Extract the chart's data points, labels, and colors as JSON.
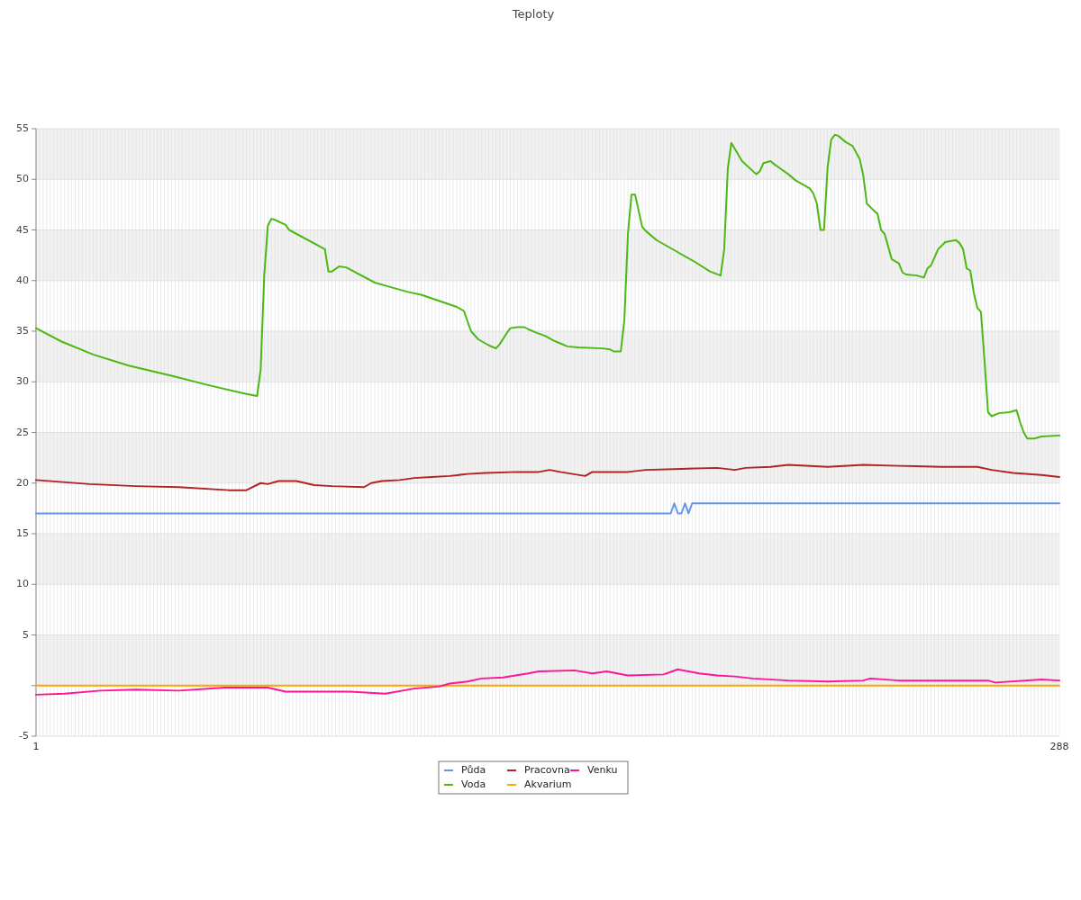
{
  "chart_data": {
    "type": "line",
    "title": "Teploty",
    "legend": "bottom",
    "grid": true,
    "marker": "none",
    "line_style": "solid",
    "xlim": [
      1,
      288
    ],
    "ylim": [
      -5,
      55
    ],
    "yticks": [
      -5,
      {
        "value": 0,
        "label": null
      },
      5,
      10,
      15,
      20,
      25,
      30,
      35,
      40,
      45,
      50,
      55
    ],
    "xticks": [
      1,
      {
        "value": 2,
        "label": null
      },
      {
        "value": 3,
        "label": null
      },
      {
        "value": 4,
        "label": null
      },
      {
        "value": 5,
        "label": null
      },
      {
        "value": 6,
        "label": null
      },
      {
        "value": 7,
        "label": null
      },
      {
        "value": 8,
        "label": null
      },
      {
        "value": 9,
        "label": null
      },
      {
        "value": 10,
        "label": null
      },
      {
        "value": 11,
        "label": null
      },
      {
        "value": 12,
        "label": null
      },
      {
        "value": 13,
        "label": null
      },
      {
        "value": 14,
        "label": null
      },
      {
        "value": 15,
        "label": null
      },
      {
        "value": 16,
        "label": null
      },
      {
        "value": 17,
        "label": null
      },
      {
        "value": 18,
        "label": null
      },
      {
        "value": 19,
        "label": null
      },
      {
        "value": 20,
        "label": null
      },
      {
        "value": 21,
        "label": null
      },
      {
        "value": 22,
        "label": null
      },
      {
        "value": 23,
        "label": null
      },
      {
        "value": 24,
        "label": null
      },
      {
        "value": 25,
        "label": null
      },
      {
        "value": 26,
        "label": null
      },
      {
        "value": 27,
        "label": null
      },
      {
        "value": 28,
        "label": null
      },
      {
        "value": 29,
        "label": null
      },
      {
        "value": 30,
        "label": null
      },
      {
        "value": 31,
        "label": null
      },
      {
        "value": 32,
        "label": null
      },
      {
        "value": 33,
        "label": null
      },
      {
        "value": 34,
        "label": null
      },
      {
        "value": 35,
        "label": null
      },
      {
        "value": 36,
        "label": null
      },
      {
        "value": 37,
        "label": null
      },
      {
        "value": 38,
        "label": null
      },
      {
        "value": 39,
        "label": null
      },
      {
        "value": 40,
        "label": null
      },
      {
        "value": 41,
        "label": null
      },
      {
        "value": 42,
        "label": null
      },
      {
        "value": 43,
        "label": null
      },
      {
        "value": 44,
        "label": null
      },
      {
        "value": 45,
        "label": null
      },
      {
        "value": 46,
        "label": null
      },
      {
        "value": 47,
        "label": null
      },
      {
        "value": 48,
        "label": null
      },
      {
        "value": 49,
        "label": null
      },
      {
        "value": 50,
        "label": null
      },
      {
        "value": 51,
        "label": null
      },
      {
        "value": 52,
        "label": null
      },
      {
        "value": 53,
        "label": null
      },
      {
        "value": 54,
        "label": null
      },
      {
        "value": 55,
        "label": null
      },
      {
        "value": 56,
        "label": null
      },
      {
        "value": 57,
        "label": null
      },
      {
        "value": 58,
        "label": null
      },
      {
        "value": 59,
        "label": null
      },
      {
        "value": 60,
        "label": null
      },
      {
        "value": 61,
        "label": null
      },
      {
        "value": 62,
        "label": null
      },
      {
        "value": 63,
        "label": null
      },
      {
        "value": 64,
        "label": null
      },
      {
        "value": 65,
        "label": null
      },
      {
        "value": 66,
        "label": null
      },
      {
        "value": 67,
        "label": null
      },
      {
        "value": 68,
        "label": null
      },
      {
        "value": 69,
        "label": null
      },
      {
        "value": 70,
        "label": null
      },
      {
        "value": 71,
        "label": null
      },
      {
        "value": 72,
        "label": null
      },
      {
        "value": 73,
        "label": null
      },
      {
        "value": 74,
        "label": null
      },
      {
        "value": 75,
        "label": null
      },
      {
        "value": 76,
        "label": null
      },
      {
        "value": 77,
        "label": null
      },
      {
        "value": 78,
        "label": null
      },
      {
        "value": 79,
        "label": null
      },
      {
        "value": 80,
        "label": null
      },
      {
        "value": 81,
        "label": null
      },
      {
        "value": 82,
        "label": null
      },
      {
        "value": 83,
        "label": null
      },
      {
        "value": 84,
        "label": null
      },
      {
        "value": 85,
        "label": null
      },
      {
        "value": 86,
        "label": null
      },
      {
        "value": 87,
        "label": null
      },
      {
        "value": 88,
        "label": null
      },
      {
        "value": 89,
        "label": null
      },
      {
        "value": 90,
        "label": null
      },
      {
        "value": 91,
        "label": null
      },
      {
        "value": 92,
        "label": null
      },
      {
        "value": 93,
        "label": null
      },
      {
        "value": 94,
        "label": null
      },
      {
        "value": 95,
        "label": null
      },
      {
        "value": 96,
        "label": null
      },
      {
        "value": 97,
        "label": null
      },
      {
        "value": 98,
        "label": null
      },
      {
        "value": 99,
        "label": null
      },
      {
        "value": 100,
        "label": null
      },
      {
        "value": 101,
        "label": null
      },
      {
        "value": 102,
        "label": null
      },
      {
        "value": 103,
        "label": null
      },
      {
        "value": 104,
        "label": null
      },
      {
        "value": 105,
        "label": null
      },
      {
        "value": 106,
        "label": null
      },
      {
        "value": 107,
        "label": null
      },
      {
        "value": 108,
        "label": null
      },
      {
        "value": 109,
        "label": null
      },
      {
        "value": 110,
        "label": null
      },
      {
        "value": 111,
        "label": null
      },
      {
        "value": 112,
        "label": null
      },
      {
        "value": 113,
        "label": null
      },
      {
        "value": 114,
        "label": null
      },
      {
        "value": 115,
        "label": null
      },
      {
        "value": 116,
        "label": null
      },
      {
        "value": 117,
        "label": null
      },
      {
        "value": 118,
        "label": null
      },
      {
        "value": 119,
        "label": null
      },
      {
        "value": 120,
        "label": null
      },
      {
        "value": 121,
        "label": null
      },
      {
        "value": 122,
        "label": null
      },
      {
        "value": 123,
        "label": null
      },
      {
        "value": 124,
        "label": null
      },
      {
        "value": 125,
        "label": null
      },
      {
        "value": 126,
        "label": null
      },
      {
        "value": 127,
        "label": null
      },
      {
        "value": 128,
        "label": null
      },
      {
        "value": 129,
        "label": null
      },
      {
        "value": 130,
        "label": null
      },
      {
        "value": 131,
        "label": null
      },
      {
        "value": 132,
        "label": null
      },
      {
        "value": 133,
        "label": null
      },
      {
        "value": 134,
        "label": null
      },
      {
        "value": 135,
        "label": null
      },
      {
        "value": 136,
        "label": null
      },
      {
        "value": 137,
        "label": null
      },
      {
        "value": 138,
        "label": null
      },
      {
        "value": 139,
        "label": null
      },
      {
        "value": 140,
        "label": null
      },
      {
        "value": 141,
        "label": null
      },
      {
        "value": 142,
        "label": null
      },
      {
        "value": 143,
        "label": null
      },
      {
        "value": 144,
        "label": null
      },
      {
        "value": 145,
        "label": null
      },
      {
        "value": 146,
        "label": null
      },
      {
        "value": 147,
        "label": null
      },
      {
        "value": 148,
        "label": null
      },
      {
        "value": 149,
        "label": null
      },
      {
        "value": 150,
        "label": null
      },
      {
        "value": 151,
        "label": null
      },
      {
        "value": 152,
        "label": null
      },
      {
        "value": 153,
        "label": null
      },
      {
        "value": 154,
        "label": null
      },
      {
        "value": 155,
        "label": null
      },
      {
        "value": 156,
        "label": null
      },
      {
        "value": 157,
        "label": null
      },
      {
        "value": 158,
        "label": null
      },
      {
        "value": 159,
        "label": null
      },
      {
        "value": 160,
        "label": null
      },
      {
        "value": 161,
        "label": null
      },
      {
        "value": 162,
        "label": null
      },
      {
        "value": 163,
        "label": null
      },
      {
        "value": 164,
        "label": null
      },
      {
        "value": 165,
        "label": null
      },
      {
        "value": 166,
        "label": null
      },
      {
        "value": 167,
        "label": null
      },
      {
        "value": 168,
        "label": null
      },
      {
        "value": 169,
        "label": null
      },
      {
        "value": 170,
        "label": null
      },
      {
        "value": 171,
        "label": null
      },
      {
        "value": 172,
        "label": null
      },
      {
        "value": 173,
        "label": null
      },
      {
        "value": 174,
        "label": null
      },
      {
        "value": 175,
        "label": null
      },
      {
        "value": 176,
        "label": null
      },
      {
        "value": 177,
        "label": null
      },
      {
        "value": 178,
        "label": null
      },
      {
        "value": 179,
        "label": null
      },
      {
        "value": 180,
        "label": null
      },
      {
        "value": 181,
        "label": null
      },
      {
        "value": 182,
        "label": null
      },
      {
        "value": 183,
        "label": null
      },
      {
        "value": 184,
        "label": null
      },
      {
        "value": 185,
        "label": null
      },
      {
        "value": 186,
        "label": null
      },
      {
        "value": 187,
        "label": null
      },
      {
        "value": 188,
        "label": null
      },
      {
        "value": 189,
        "label": null
      },
      {
        "value": 190,
        "label": null
      },
      {
        "value": 191,
        "label": null
      },
      {
        "value": 192,
        "label": null
      },
      {
        "value": 193,
        "label": null
      },
      {
        "value": 194,
        "label": null
      },
      {
        "value": 195,
        "label": null
      },
      {
        "value": 196,
        "label": null
      },
      {
        "value": 197,
        "label": null
      },
      {
        "value": 198,
        "label": null
      },
      {
        "value": 199,
        "label": null
      },
      {
        "value": 200,
        "label": null
      },
      {
        "value": 201,
        "label": null
      },
      {
        "value": 202,
        "label": null
      },
      {
        "value": 203,
        "label": null
      },
      {
        "value": 204,
        "label": null
      },
      {
        "value": 205,
        "label": null
      },
      {
        "value": 206,
        "label": null
      },
      {
        "value": 207,
        "label": null
      },
      {
        "value": 208,
        "label": null
      },
      {
        "value": 209,
        "label": null
      },
      {
        "value": 210,
        "label": null
      },
      {
        "value": 211,
        "label": null
      },
      {
        "value": 212,
        "label": null
      },
      {
        "value": 213,
        "label": null
      },
      {
        "value": 214,
        "label": null
      },
      {
        "value": 215,
        "label": null
      },
      {
        "value": 216,
        "label": null
      },
      {
        "value": 217,
        "label": null
      },
      {
        "value": 218,
        "label": null
      },
      {
        "value": 219,
        "label": null
      },
      {
        "value": 220,
        "label": null
      },
      {
        "value": 221,
        "label": null
      },
      {
        "value": 222,
        "label": null
      },
      {
        "value": 223,
        "label": null
      },
      {
        "value": 224,
        "label": null
      },
      {
        "value": 225,
        "label": null
      },
      {
        "value": 226,
        "label": null
      },
      {
        "value": 227,
        "label": null
      },
      {
        "value": 228,
        "label": null
      },
      {
        "value": 229,
        "label": null
      },
      {
        "value": 230,
        "label": null
      },
      {
        "value": 231,
        "label": null
      },
      {
        "value": 232,
        "label": null
      },
      {
        "value": 233,
        "label": null
      },
      {
        "value": 234,
        "label": null
      },
      {
        "value": 235,
        "label": null
      },
      {
        "value": 236,
        "label": null
      },
      {
        "value": 237,
        "label": null
      },
      {
        "value": 238,
        "label": null
      },
      {
        "value": 239,
        "label": null
      },
      {
        "value": 240,
        "label": null
      },
      {
        "value": 241,
        "label": null
      },
      {
        "value": 242,
        "label": null
      },
      {
        "value": 243,
        "label": null
      },
      {
        "value": 244,
        "label": null
      },
      {
        "value": 245,
        "label": null
      },
      {
        "value": 246,
        "label": null
      },
      {
        "value": 247,
        "label": null
      },
      {
        "value": 248,
        "label": null
      },
      {
        "value": 249,
        "label": null
      },
      {
        "value": 250,
        "label": null
      },
      {
        "value": 251,
        "label": null
      },
      {
        "value": 252,
        "label": null
      },
      {
        "value": 253,
        "label": null
      },
      {
        "value": 254,
        "label": null
      },
      {
        "value": 255,
        "label": null
      },
      {
        "value": 256,
        "label": null
      },
      {
        "value": 257,
        "label": null
      },
      {
        "value": 258,
        "label": null
      },
      {
        "value": 259,
        "label": null
      },
      {
        "value": 260,
        "label": null
      },
      {
        "value": 261,
        "label": null
      },
      {
        "value": 262,
        "label": null
      },
      {
        "value": 263,
        "label": null
      },
      {
        "value": 264,
        "label": null
      },
      {
        "value": 265,
        "label": null
      },
      {
        "value": 266,
        "label": null
      },
      {
        "value": 267,
        "label": null
      },
      {
        "value": 268,
        "label": null
      },
      {
        "value": 269,
        "label": null
      },
      {
        "value": 270,
        "label": null
      },
      {
        "value": 271,
        "label": null
      },
      {
        "value": 272,
        "label": null
      },
      {
        "value": 273,
        "label": null
      },
      {
        "value": 274,
        "label": null
      },
      {
        "value": 275,
        "label": null
      },
      {
        "value": 276,
        "label": null
      },
      {
        "value": 277,
        "label": null
      },
      {
        "value": 278,
        "label": null
      },
      {
        "value": 279,
        "label": null
      },
      {
        "value": 280,
        "label": null
      },
      {
        "value": 281,
        "label": null
      },
      {
        "value": 282,
        "label": null
      },
      {
        "value": 283,
        "label": null
      },
      {
        "value": 284,
        "label": null
      },
      {
        "value": 285,
        "label": null
      },
      {
        "value": 286,
        "label": null
      },
      {
        "value": 287,
        "label": null
      },
      288
    ],
    "series": [
      {
        "name": "Půda",
        "color": "#6495ed",
        "x": [
          1,
          179,
          180,
          181,
          182,
          183,
          184,
          185,
          288
        ],
        "values": [
          17,
          17,
          18,
          17,
          17,
          18,
          17,
          18,
          18
        ]
      },
      {
        "name": "Voda",
        "color": "#4cb814",
        "x": [
          1,
          8,
          17,
          27,
          39,
          49,
          60,
          63,
          64,
          65,
          66,
          67,
          68,
          71,
          72,
          82,
          83,
          84,
          86,
          88,
          96,
          99,
          105,
          109,
          114,
          119,
          121,
          122,
          123,
          125,
          127,
          128,
          130,
          131,
          133,
          134,
          136,
          138,
          139,
          141,
          144,
          146,
          148,
          150,
          153,
          160,
          162,
          163,
          165,
          166,
          167,
          168,
          169,
          171,
          172,
          175,
          177,
          180,
          186,
          190,
          193,
          194,
          195,
          196,
          197,
          199,
          203,
          204,
          205,
          207,
          208,
          210,
          212,
          214,
          217,
          218,
          219,
          220,
          221,
          222,
          223,
          224,
          225,
          226,
          228,
          230,
          232,
          233,
          234,
          236,
          237,
          238,
          239,
          241,
          243,
          244,
          245,
          248,
          250,
          251,
          252,
          254,
          256,
          259,
          260,
          261,
          262,
          263,
          264,
          265,
          266,
          267,
          268,
          269,
          271,
          274,
          276,
          277,
          278,
          279,
          281,
          283,
          288
        ],
        "values": [
          35.3,
          34.0,
          32.7,
          31.6,
          30.6,
          29.7,
          28.8,
          28.6,
          31.2,
          40.5,
          45.4,
          46.1,
          46.0,
          45.5,
          45.0,
          43.1,
          40.9,
          40.9,
          41.4,
          41.3,
          39.8,
          39.5,
          38.9,
          38.6,
          38.0,
          37.4,
          37.0,
          36.0,
          35.0,
          34.2,
          33.8,
          33.6,
          33.3,
          33.7,
          34.8,
          35.3,
          35.4,
          35.4,
          35.2,
          34.9,
          34.5,
          34.1,
          33.8,
          33.5,
          33.4,
          33.3,
          33.2,
          33.0,
          33.0,
          36.1,
          44.6,
          48.5,
          48.5,
          45.3,
          44.9,
          44.0,
          43.6,
          43.0,
          41.8,
          40.9,
          40.5,
          43.1,
          51.0,
          53.6,
          53.0,
          51.8,
          50.5,
          50.8,
          51.6,
          51.8,
          51.5,
          51.0,
          50.5,
          49.9,
          49.3,
          49.1,
          48.6,
          47.6,
          45.0,
          45.0,
          51.2,
          53.9,
          54.4,
          54.3,
          53.7,
          53.3,
          52.0,
          50.4,
          47.6,
          46.9,
          46.6,
          45.0,
          44.6,
          42.1,
          41.7,
          40.8,
          40.6,
          40.5,
          40.3,
          41.2,
          41.5,
          43.1,
          43.8,
          44.0,
          43.7,
          43.1,
          41.2,
          41.0,
          38.8,
          37.3,
          36.9,
          32.1,
          27.0,
          26.6,
          26.9,
          27.0,
          27.2,
          26.0,
          25.0,
          24.4,
          24.4,
          24.6,
          24.7
        ]
      },
      {
        "name": "Pracovna",
        "color": "#b22222",
        "x": [
          1,
          16,
          29,
          41,
          55,
          60,
          64,
          66,
          69,
          74,
          79,
          84,
          93,
          95,
          98,
          103,
          107,
          112,
          117,
          122,
          127,
          136,
          142,
          145,
          148,
          155,
          157,
          167,
          172,
          182,
          192,
          197,
          200,
          207,
          212,
          223,
          233,
          243,
          255,
          265,
          269,
          275,
          283,
          288
        ],
        "values": [
          20.3,
          19.9,
          19.7,
          19.6,
          19.3,
          19.3,
          20.0,
          19.9,
          20.2,
          20.2,
          19.8,
          19.7,
          19.6,
          20.0,
          20.2,
          20.3,
          20.5,
          20.6,
          20.7,
          20.9,
          21.0,
          21.1,
          21.1,
          21.3,
          21.1,
          20.7,
          21.1,
          21.1,
          21.3,
          21.4,
          21.5,
          21.3,
          21.5,
          21.6,
          21.8,
          21.6,
          21.8,
          21.7,
          21.6,
          21.6,
          21.3,
          21.0,
          20.8,
          20.6
        ]
      },
      {
        "name": "Akvarium",
        "color": "#ffa500",
        "x": [
          1,
          288
        ],
        "values": [
          0,
          0
        ]
      },
      {
        "name": "Venku",
        "color": "#ff1493",
        "x": [
          1,
          9,
          19,
          29,
          41,
          54,
          66,
          71,
          89,
          99,
          107,
          114,
          117,
          122,
          126,
          132,
          139,
          142,
          152,
          157,
          161,
          167,
          177,
          181,
          187,
          192,
          197,
          202,
          212,
          223,
          233,
          235,
          243,
          253,
          268,
          270,
          283,
          288
        ],
        "values": [
          -0.9,
          -0.8,
          -0.5,
          -0.4,
          -0.5,
          -0.2,
          -0.2,
          -0.6,
          -0.6,
          -0.8,
          -0.3,
          -0.1,
          0.2,
          0.4,
          0.7,
          0.8,
          1.2,
          1.4,
          1.5,
          1.2,
          1.4,
          1.0,
          1.1,
          1.6,
          1.2,
          1.0,
          0.9,
          0.7,
          0.5,
          0.4,
          0.5,
          0.7,
          0.5,
          0.5,
          0.5,
          0.3,
          0.6,
          0.5
        ]
      }
    ]
  }
}
